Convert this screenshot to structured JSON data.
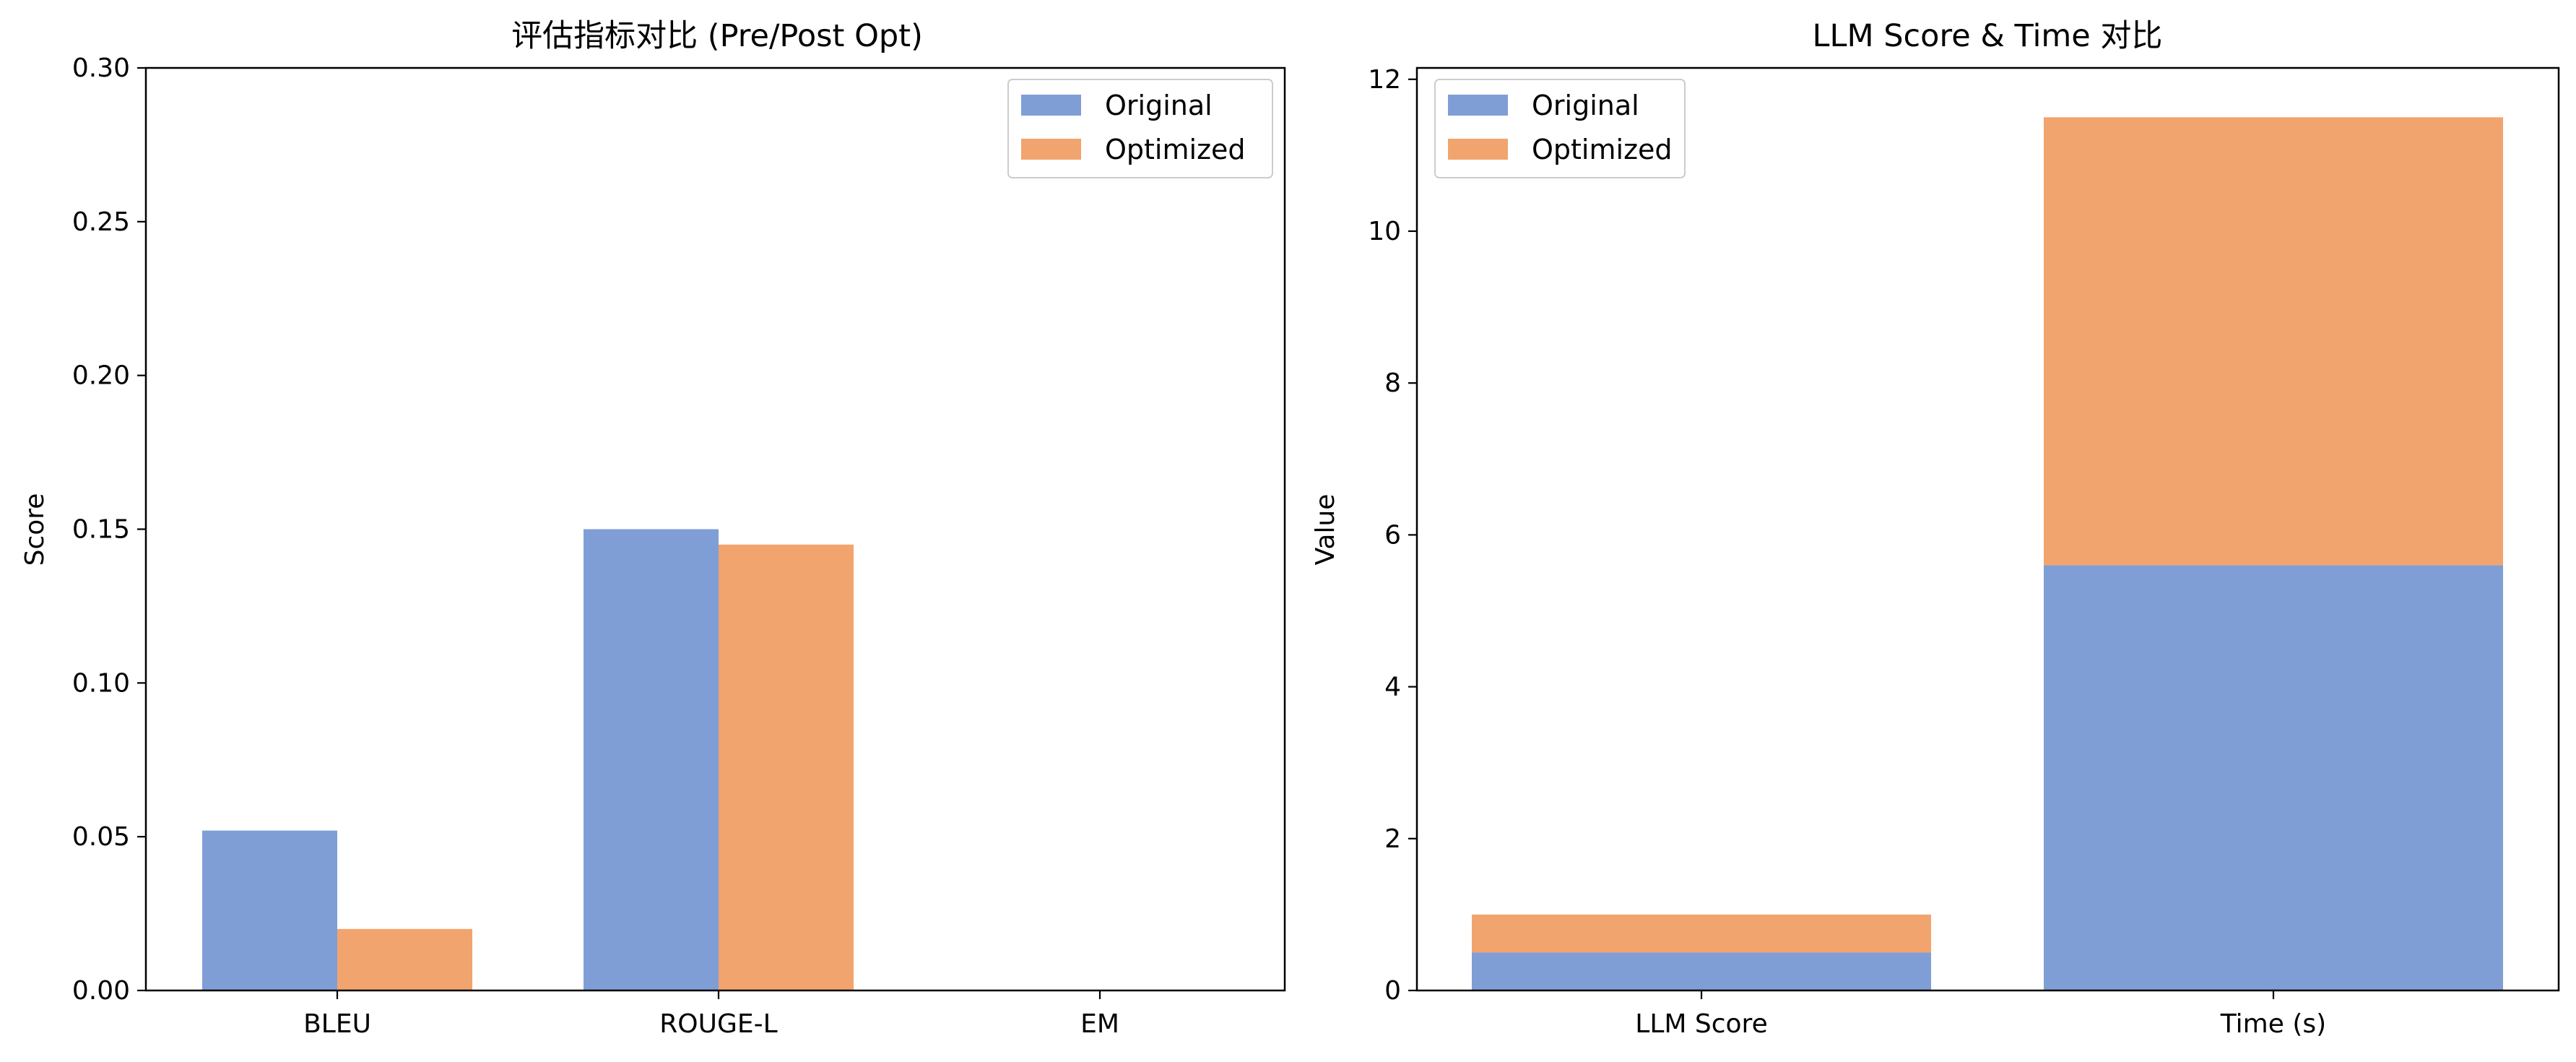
{
  "colors": {
    "original": "#7f9ed6",
    "optimized": "#f2a46e"
  },
  "chart_data": [
    {
      "type": "bar",
      "title": "评估指标对比 (Pre/Post Opt)",
      "xlabel": "",
      "ylabel": "Score",
      "categories": [
        "BLEU",
        "ROUGE-L",
        "EM"
      ],
      "ylim": [
        0,
        0.3
      ],
      "yticks": [
        "0.00",
        "0.05",
        "0.10",
        "0.15",
        "0.20",
        "0.25",
        "0.30"
      ],
      "grid": false,
      "legend": "top-right",
      "stacked": false,
      "series": [
        {
          "name": "Original",
          "values": [
            0.052,
            0.15,
            0.0
          ]
        },
        {
          "name": "Optimized",
          "values": [
            0.02,
            0.145,
            0.0
          ]
        }
      ]
    },
    {
      "type": "bar",
      "title": "LLM Score & Time 对比",
      "xlabel": "",
      "ylabel": "Value",
      "categories": [
        "LLM Score",
        "Time (s)"
      ],
      "ylim": [
        0,
        12.15
      ],
      "yticks": [
        "0",
        "2",
        "4",
        "6",
        "8",
        "10",
        "12"
      ],
      "grid": false,
      "legend": "top-left",
      "stacked": true,
      "series": [
        {
          "name": "Original",
          "values": [
            0.5,
            5.6
          ]
        },
        {
          "name": "Optimized",
          "values": [
            0.5,
            5.9
          ]
        }
      ]
    }
  ]
}
